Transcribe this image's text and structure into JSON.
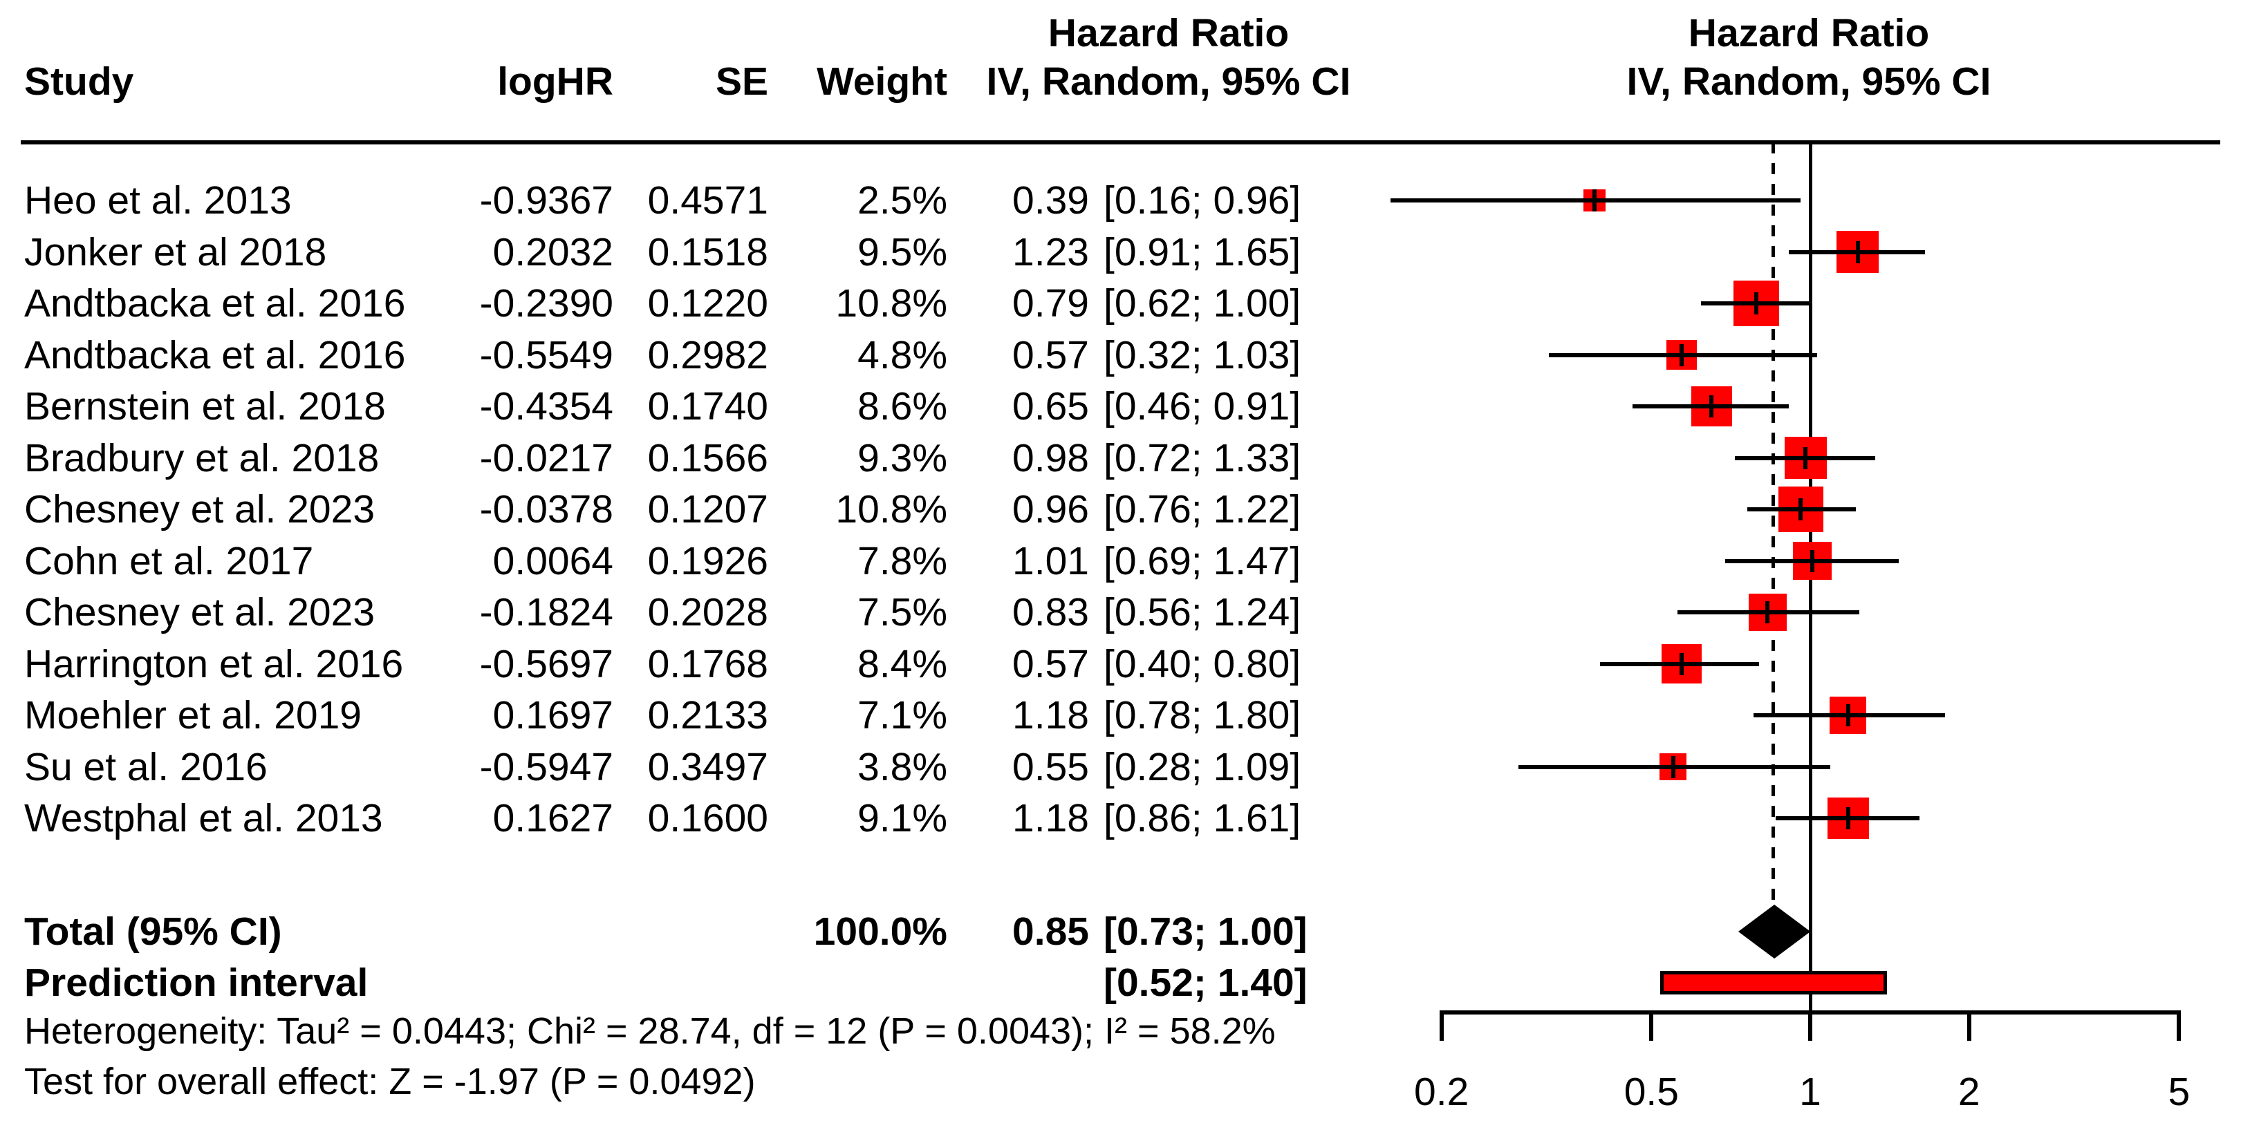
{
  "header": {
    "study": "Study",
    "loghr": "logHR",
    "se": "SE",
    "weight": "Weight",
    "effect_line1": "Hazard Ratio",
    "effect_line2": "IV, Random, 95% CI",
    "plot_line1": "Hazard Ratio",
    "plot_line2": "IV, Random, 95% CI"
  },
  "studies": [
    {
      "name": "Heo et al. 2013",
      "loghr": "-0.9367",
      "se": "0.4571",
      "weight": "2.5%",
      "hr_text": "0.39",
      "ci_text": "[0.16; 0.96]",
      "hr": 0.39,
      "lo": 0.16,
      "hi": 0.96,
      "weight_pct": 2.5
    },
    {
      "name": "Jonker et al 2018",
      "loghr": "0.2032",
      "se": "0.1518",
      "weight": "9.5%",
      "hr_text": "1.23",
      "ci_text": "[0.91; 1.65]",
      "hr": 1.23,
      "lo": 0.91,
      "hi": 1.65,
      "weight_pct": 9.5
    },
    {
      "name": "Andtbacka et al. 2016",
      "loghr": "-0.2390",
      "se": "0.1220",
      "weight": "10.8%",
      "hr_text": "0.79",
      "ci_text": "[0.62; 1.00]",
      "hr": 0.79,
      "lo": 0.62,
      "hi": 1.0,
      "weight_pct": 10.8
    },
    {
      "name": "Andtbacka et al. 2016",
      "loghr": "-0.5549",
      "se": "0.2982",
      "weight": "4.8%",
      "hr_text": "0.57",
      "ci_text": "[0.32; 1.03]",
      "hr": 0.57,
      "lo": 0.32,
      "hi": 1.03,
      "weight_pct": 4.8
    },
    {
      "name": "Bernstein et al. 2018",
      "loghr": "-0.4354",
      "se": "0.1740",
      "weight": "8.6%",
      "hr_text": "0.65",
      "ci_text": "[0.46; 0.91]",
      "hr": 0.65,
      "lo": 0.46,
      "hi": 0.91,
      "weight_pct": 8.6
    },
    {
      "name": "Bradbury et al. 2018",
      "loghr": "-0.0217",
      "se": "0.1566",
      "weight": "9.3%",
      "hr_text": "0.98",
      "ci_text": "[0.72; 1.33]",
      "hr": 0.98,
      "lo": 0.72,
      "hi": 1.33,
      "weight_pct": 9.3
    },
    {
      "name": "Chesney et al. 2023",
      "loghr": "-0.0378",
      "se": "0.1207",
      "weight": "10.8%",
      "hr_text": "0.96",
      "ci_text": "[0.76; 1.22]",
      "hr": 0.96,
      "lo": 0.76,
      "hi": 1.22,
      "weight_pct": 10.8
    },
    {
      "name": "Cohn et al. 2017",
      "loghr": "0.0064",
      "se": "0.1926",
      "weight": "7.8%",
      "hr_text": "1.01",
      "ci_text": "[0.69; 1.47]",
      "hr": 1.01,
      "lo": 0.69,
      "hi": 1.47,
      "weight_pct": 7.8
    },
    {
      "name": "Chesney et al. 2023",
      "loghr": "-0.1824",
      "se": "0.2028",
      "weight": "7.5%",
      "hr_text": "0.83",
      "ci_text": "[0.56; 1.24]",
      "hr": 0.83,
      "lo": 0.56,
      "hi": 1.24,
      "weight_pct": 7.5
    },
    {
      "name": "Harrington et al. 2016",
      "loghr": "-0.5697",
      "se": "0.1768",
      "weight": "8.4%",
      "hr_text": "0.57",
      "ci_text": "[0.40; 0.80]",
      "hr": 0.57,
      "lo": 0.4,
      "hi": 0.8,
      "weight_pct": 8.4
    },
    {
      "name": "Moehler et al. 2019",
      "loghr": "0.1697",
      "se": "0.2133",
      "weight": "7.1%",
      "hr_text": "1.18",
      "ci_text": "[0.78; 1.80]",
      "hr": 1.18,
      "lo": 0.78,
      "hi": 1.8,
      "weight_pct": 7.1
    },
    {
      "name": "Su et al. 2016",
      "loghr": "-0.5947",
      "se": "0.3497",
      "weight": "3.8%",
      "hr_text": "0.55",
      "ci_text": "[0.28; 1.09]",
      "hr": 0.55,
      "lo": 0.28,
      "hi": 1.09,
      "weight_pct": 3.8
    },
    {
      "name": "Westphal et al. 2013",
      "loghr": "0.1627",
      "se": "0.1600",
      "weight": "9.1%",
      "hr_text": "1.18",
      "ci_text": "[0.86; 1.61]",
      "hr": 1.18,
      "lo": 0.86,
      "hi": 1.61,
      "weight_pct": 9.1
    }
  ],
  "total": {
    "label": "Total (95% CI)",
    "weight": "100.0%",
    "hr_text": "0.85",
    "ci_text": "[0.73; 1.00]",
    "hr": 0.85,
    "lo": 0.73,
    "hi": 1.0
  },
  "prediction": {
    "label": "Prediction interval",
    "ci_text": "[0.52; 1.40]",
    "lo": 0.52,
    "hi": 1.4
  },
  "footnotes": {
    "heterogeneity": "Heterogeneity: Tau² = 0.0443; Chi² = 28.74, df = 12 (P = 0.0043); I² = 58.2%",
    "overall_effect": "Test for overall effect: Z = -1.97 (P = 0.0492)"
  },
  "axis": {
    "ticks": [
      {
        "label": "0.2",
        "value": 0.2
      },
      {
        "label": "0.5",
        "value": 0.5
      },
      {
        "label": "1",
        "value": 1
      },
      {
        "label": "2",
        "value": 2
      },
      {
        "label": "5",
        "value": 5
      }
    ]
  },
  "colors": {
    "square": "#ff0000",
    "prediction_fill": "#ff0000",
    "ink": "#000000"
  },
  "chart_data": {
    "type": "scatter",
    "subtype": "forest_plot_meta_analysis",
    "title": "Hazard Ratio IV, Random, 95% CI",
    "x_scale": "log",
    "x_ticks": [
      0.2,
      0.5,
      1,
      2,
      5
    ],
    "xlim": [
      0.2,
      5
    ],
    "reference_line": 1.0,
    "pooled_dashed_line": 0.85,
    "studies": [
      "Heo et al. 2013",
      "Jonker et al 2018",
      "Andtbacka et al. 2016",
      "Andtbacka et al. 2016",
      "Bernstein et al. 2018",
      "Bradbury et al. 2018",
      "Chesney et al. 2023",
      "Cohn et al. 2017",
      "Chesney et al. 2023",
      "Harrington et al. 2016",
      "Moehler et al. 2019",
      "Su et al. 2016",
      "Westphal et al. 2013"
    ],
    "logHR": [
      -0.9367,
      0.2032,
      -0.239,
      -0.5549,
      -0.4354,
      -0.0217,
      -0.0378,
      0.0064,
      -0.1824,
      -0.5697,
      0.1697,
      -0.5947,
      0.1627
    ],
    "SE": [
      0.4571,
      0.1518,
      0.122,
      0.2982,
      0.174,
      0.1566,
      0.1207,
      0.1926,
      0.2028,
      0.1768,
      0.2133,
      0.3497,
      0.16
    ],
    "weights_pct": [
      2.5,
      9.5,
      10.8,
      4.8,
      8.6,
      9.3,
      10.8,
      7.8,
      7.5,
      8.4,
      7.1,
      3.8,
      9.1
    ],
    "hazard_ratio": [
      0.39,
      1.23,
      0.79,
      0.57,
      0.65,
      0.98,
      0.96,
      1.01,
      0.83,
      0.57,
      1.18,
      0.55,
      1.18
    ],
    "ci_low": [
      0.16,
      0.91,
      0.62,
      0.32,
      0.46,
      0.72,
      0.76,
      0.69,
      0.56,
      0.4,
      0.78,
      0.28,
      0.86
    ],
    "ci_high": [
      0.96,
      1.65,
      1.0,
      1.03,
      0.91,
      1.33,
      1.22,
      1.47,
      1.24,
      0.8,
      1.8,
      1.09,
      1.61
    ],
    "total": {
      "label": "Total (95% CI)",
      "hr": 0.85,
      "ci": [
        0.73,
        1.0
      ],
      "weight_pct": 100.0
    },
    "prediction_interval": [
      0.52,
      1.4
    ],
    "heterogeneity": {
      "tau2": 0.0443,
      "chi2": 28.74,
      "df": 12,
      "p": 0.0043,
      "i2_pct": 58.2
    },
    "overall_effect": {
      "z": -1.97,
      "p": 0.0492
    },
    "legend_position": "none",
    "grid": false
  }
}
